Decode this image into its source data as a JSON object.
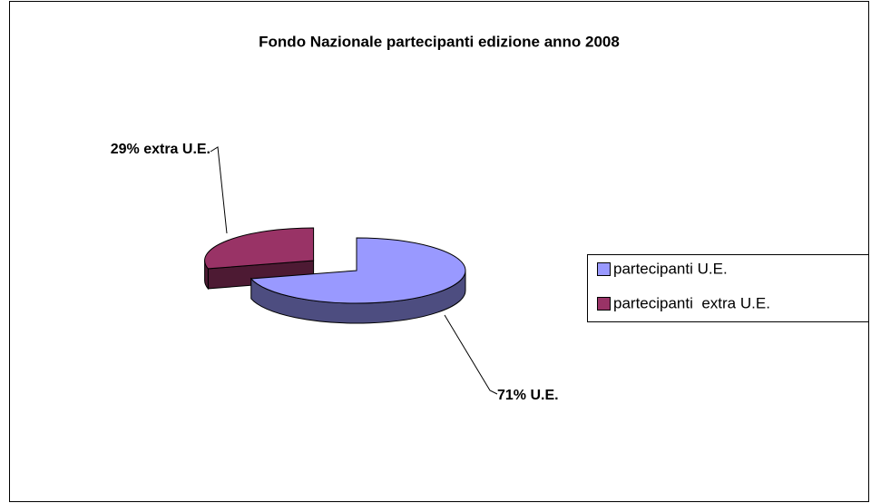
{
  "chart_data": {
    "type": "pie",
    "title": "Fondo Nazionale partecipanti edizione anno 2008",
    "categories": [
      "partecipanti U.E.",
      "partecipanti  extra U.E."
    ],
    "values": [
      71,
      29
    ],
    "value_labels": [
      "71% U.E.",
      "29% extra U.E."
    ],
    "colors": [
      "#9999ff",
      "#993366"
    ],
    "legend": "right"
  }
}
